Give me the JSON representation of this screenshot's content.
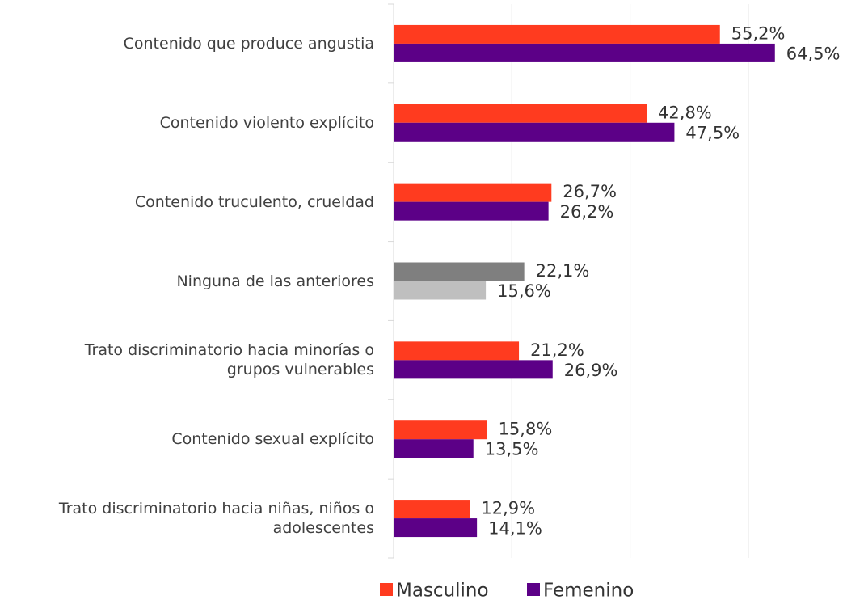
{
  "chart_data": {
    "type": "hbar",
    "categories": [
      "Contenido que produce angustia",
      "Contenido violento explícito",
      "Contenido truculento, crueldad",
      "Ninguna de las anteriores",
      "Trato discriminatorio hacia minorías o\ngrupos vulnerables",
      "Contenido sexual explícito",
      "Trato discriminatorio hacia niñas, niños o\nadolescentes"
    ],
    "series": [
      {
        "name": "Masculino",
        "color": "#ff3b1f",
        "colors": [
          "#ff3b1f",
          "#ff3b1f",
          "#ff3b1f",
          "#7f7f7f",
          "#ff3b1f",
          "#ff3b1f",
          "#ff3b1f"
        ],
        "values": [
          55.2,
          42.8,
          26.7,
          22.1,
          21.2,
          15.8,
          12.9
        ],
        "value_labels": [
          "55,2%",
          "42,8%",
          "26,7%",
          "22,1%",
          "21,2%",
          "15,8%",
          "12,9%"
        ]
      },
      {
        "name": "Femenino",
        "color": "#5c0087",
        "colors": [
          "#5c0087",
          "#5c0087",
          "#5c0087",
          "#bfbfbf",
          "#5c0087",
          "#5c0087",
          "#5c0087"
        ],
        "values": [
          64.5,
          47.5,
          26.2,
          15.6,
          26.9,
          13.5,
          14.1
        ],
        "value_labels": [
          "64,5%",
          "47,5%",
          "26,2%",
          "15,6%",
          "26,9%",
          "13,5%",
          "14,1%"
        ]
      }
    ],
    "xlim": [
      0,
      70
    ],
    "xticks": [
      0,
      20,
      40,
      60
    ],
    "grid": true,
    "legend": "bottom"
  }
}
